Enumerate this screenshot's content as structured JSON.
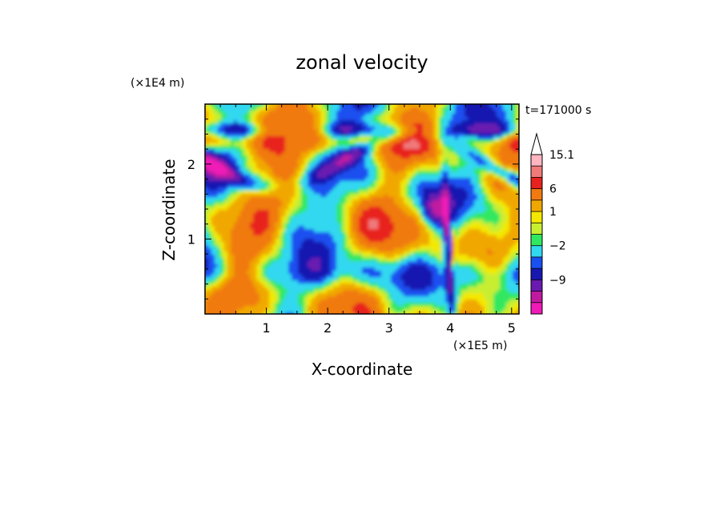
{
  "chart_data": {
    "type": "heatmap",
    "title": "zonal velocity",
    "xlabel": "X-coordinate",
    "ylabel": "Z-coordinate",
    "x_unit": "(×1E5 m)",
    "y_unit": "(×1E4 m)",
    "time_label": "t=171000 s",
    "xlim": [
      0,
      5.12
    ],
    "ylim": [
      0,
      2.8
    ],
    "x_ticks": [
      "1",
      "2",
      "3",
      "4",
      "5"
    ],
    "y_ticks": [
      "1",
      "2"
    ],
    "colorbar": {
      "labels": [
        "15.1",
        "6",
        "1",
        "−2",
        "−9"
      ],
      "levels_high_to_low": [
        15.1,
        12,
        9,
        6,
        3,
        1,
        0,
        -1,
        -2,
        -4,
        -6,
        -9,
        -12,
        -15
      ],
      "colors": [
        "#ffb6c1",
        "#f07a7a",
        "#e8221e",
        "#f07a10",
        "#f0a800",
        "#f4e800",
        "#c8ee30",
        "#30e860",
        "#30d8f0",
        "#1a50f0",
        "#1818b0",
        "#6a1ab0",
        "#c01aa0",
        "#f01ab8"
      ],
      "extend": "max"
    }
  }
}
